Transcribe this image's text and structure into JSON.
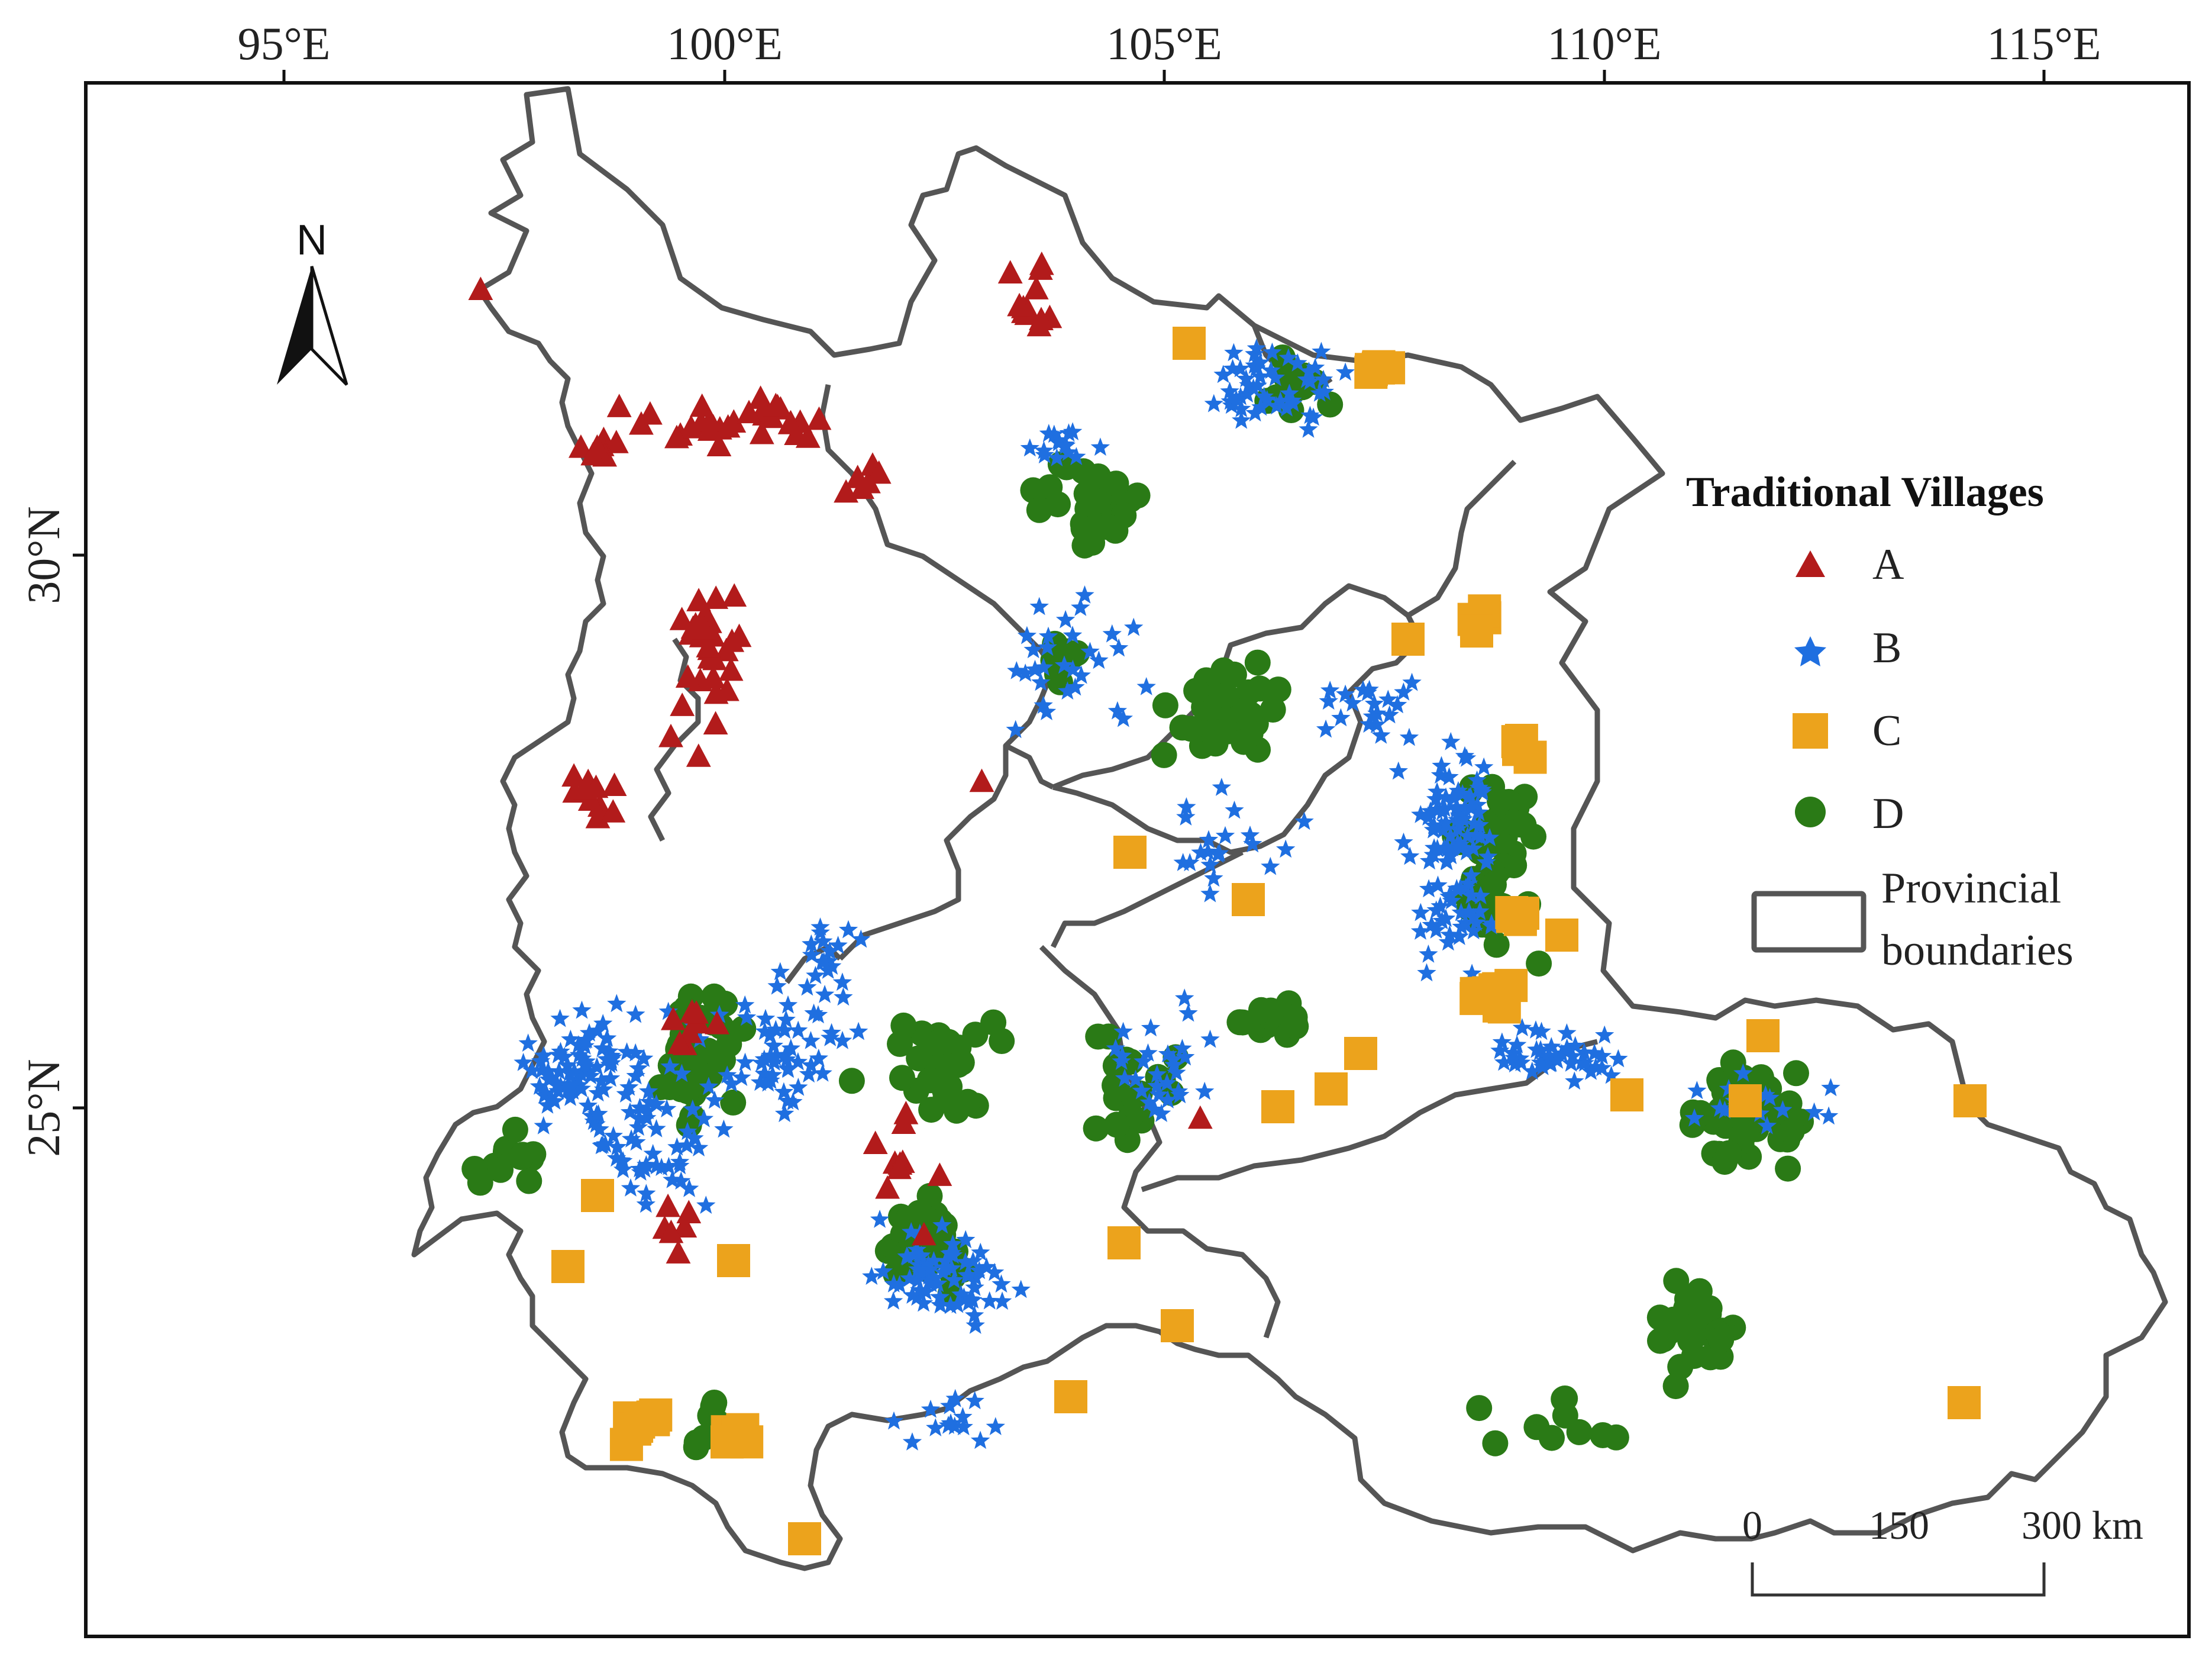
{
  "map": {
    "longitude_labels": [
      "95°E",
      "100°E",
      "105°E",
      "110°E",
      "115°E"
    ],
    "latitude_labels": [
      "30°N",
      "25°N"
    ],
    "north_arrow_label": "N",
    "legend": {
      "title": "Traditional Villages",
      "items": [
        {
          "label": "A",
          "shape": "triangle",
          "color": "#b21b1b"
        },
        {
          "label": "B",
          "shape": "star",
          "color": "#1f6fe0"
        },
        {
          "label": "C",
          "shape": "square",
          "color": "#eca31c"
        },
        {
          "label": "D",
          "shape": "circle",
          "color": "#2a7a16"
        }
      ],
      "boundary_label_line1": "Provincial",
      "boundary_label_line2": "boundaries",
      "boundary_color": "#555555"
    },
    "scale_bar": {
      "labels": [
        "0",
        "150",
        "300 km"
      ]
    }
  }
}
